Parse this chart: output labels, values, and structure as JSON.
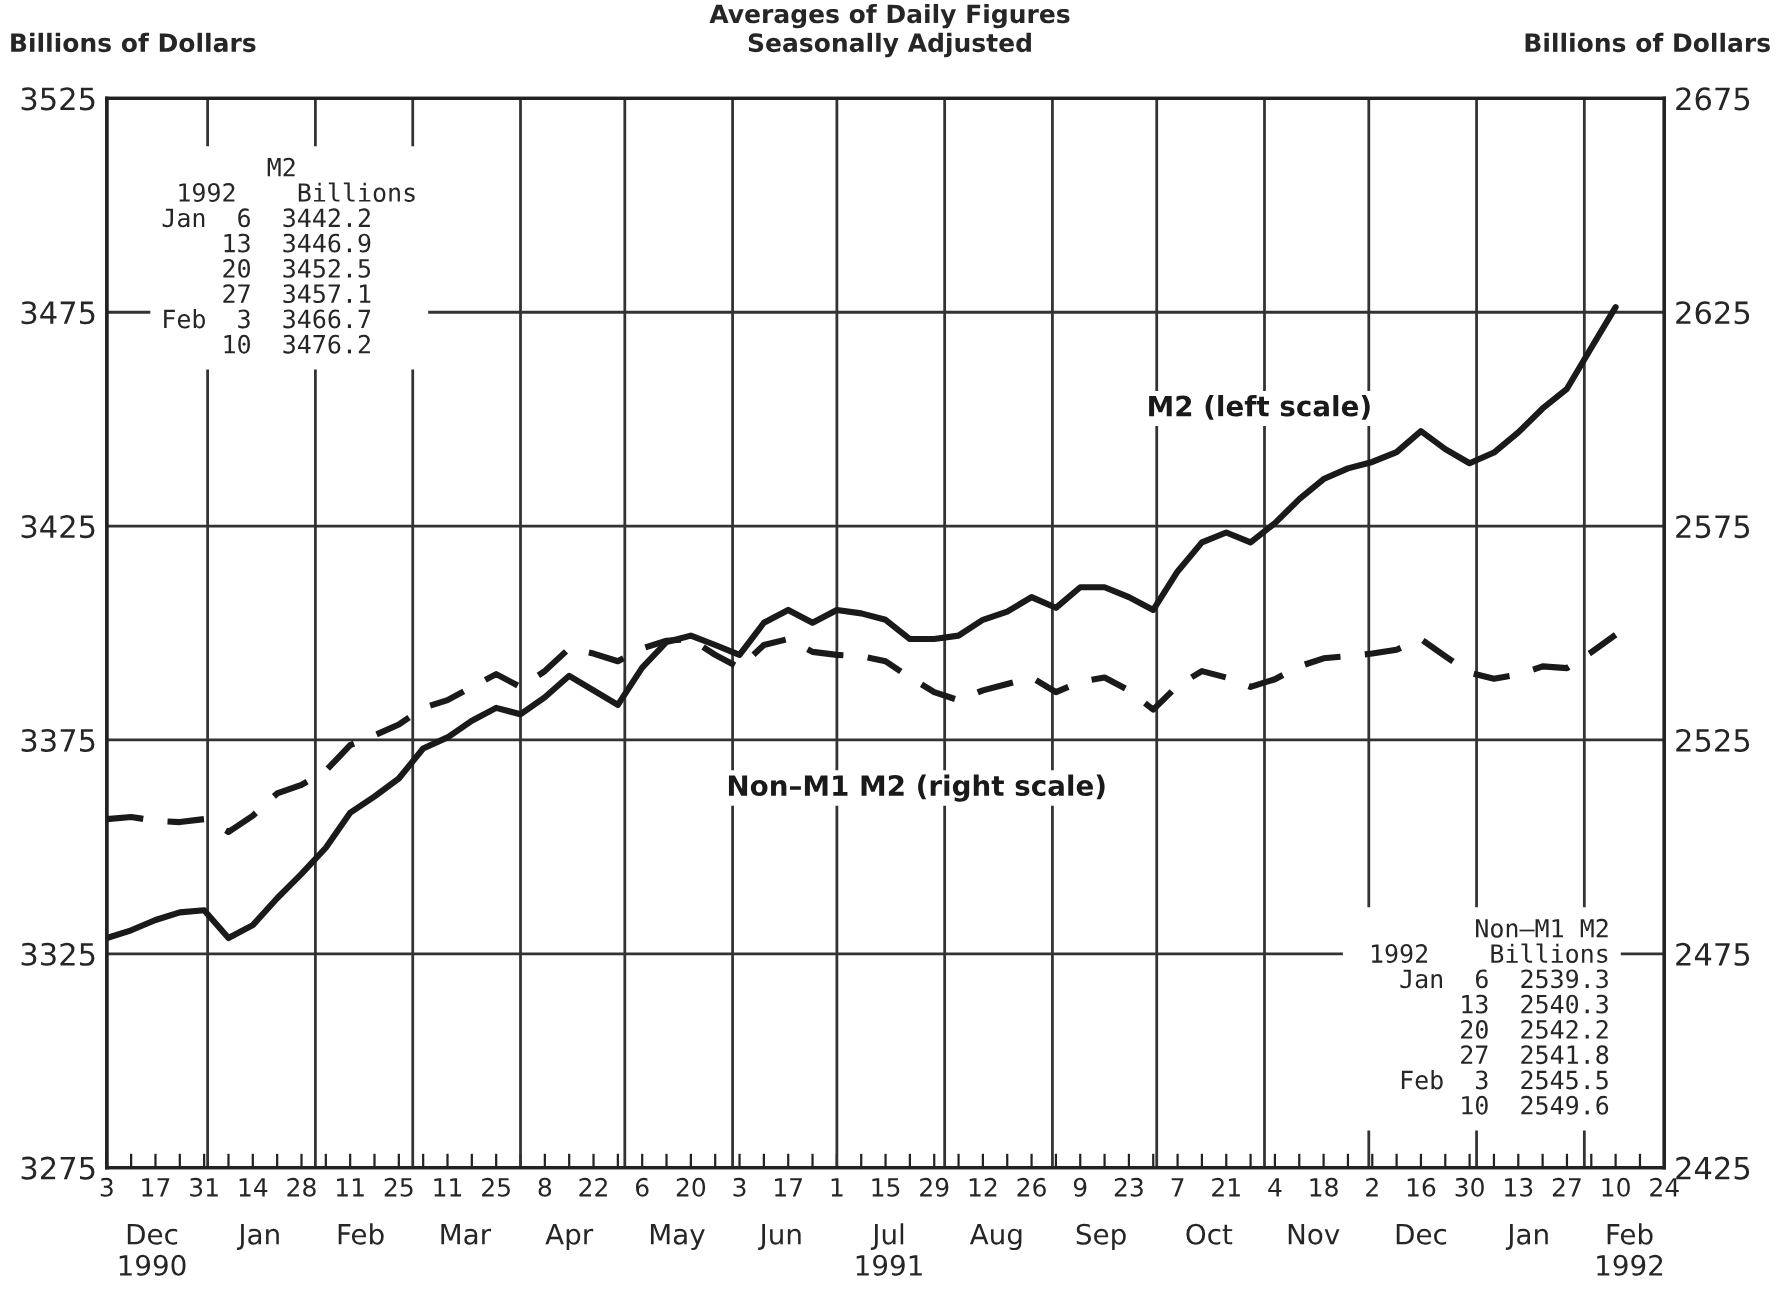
{
  "chart_data": {
    "type": "line",
    "title": "Averages of Daily Figures",
    "subtitle": "Seasonally Adjusted",
    "ylabel": "Billions of Dollars",
    "y2label": "Billions of Dollars",
    "x": [
      "1990-12-03",
      "1990-12-10",
      "1990-12-17",
      "1990-12-24",
      "1990-12-31",
      "1991-01-07",
      "1991-01-14",
      "1991-01-21",
      "1991-01-28",
      "1991-02-04",
      "1991-02-11",
      "1991-02-18",
      "1991-02-25",
      "1991-03-04",
      "1991-03-11",
      "1991-03-18",
      "1991-03-25",
      "1991-04-01",
      "1991-04-08",
      "1991-04-15",
      "1991-04-22",
      "1991-04-29",
      "1991-05-06",
      "1991-05-13",
      "1991-05-20",
      "1991-05-27",
      "1991-06-03",
      "1991-06-10",
      "1991-06-17",
      "1991-06-24",
      "1991-07-01",
      "1991-07-08",
      "1991-07-15",
      "1991-07-22",
      "1991-07-29",
      "1991-08-05",
      "1991-08-12",
      "1991-08-19",
      "1991-08-26",
      "1991-09-02",
      "1991-09-09",
      "1991-09-16",
      "1991-09-23",
      "1991-09-30",
      "1991-10-07",
      "1991-10-14",
      "1991-10-21",
      "1991-10-28",
      "1991-11-04",
      "1991-11-11",
      "1991-11-18",
      "1991-11-25",
      "1991-12-02",
      "1991-12-09",
      "1991-12-16",
      "1991-12-23",
      "1991-12-30",
      "1992-01-06",
      "1992-01-13",
      "1992-01-20",
      "1992-01-27",
      "1992-02-03",
      "1992-02-10"
    ],
    "series": [
      {
        "name": "M2 (left scale)",
        "color": "#1a1a1a",
        "line_style": "solid",
        "axis": "y",
        "values": [
          3328.7,
          3330.5,
          3332.9,
          3334.7,
          3335.2,
          3328.7,
          3331.7,
          3338,
          3343.7,
          3349.8,
          3358,
          3361.8,
          3366,
          3373,
          3375.6,
          3379.5,
          3382.5,
          3381,
          3385,
          3390,
          3386.6,
          3383.2,
          3391.9,
          3397.9,
          3399.4,
          3397.2,
          3394.9,
          3402.4,
          3405.4,
          3402.4,
          3405.4,
          3404.6,
          3403.1,
          3398.6,
          3398.6,
          3399.4,
          3403.1,
          3405,
          3408.4,
          3405.9,
          3410.7,
          3410.7,
          3408.4,
          3405.4,
          3414.4,
          3421.2,
          3423.5,
          3421.2,
          3425.7,
          3431.3,
          3436,
          3438.5,
          3440,
          3442.3,
          3447.2,
          3443,
          3439.7,
          3442.2,
          3446.9,
          3452.5,
          3457.1,
          3466.7,
          3476.2
        ]
      },
      {
        "name": "Non–M1 M2 (right scale)",
        "color": "#1a1a1a",
        "line_style": "dashed",
        "axis": "y2",
        "values": [
          2506.5,
          2507,
          2506.1,
          2505.8,
          2506.5,
          2503.5,
          2507.3,
          2512.5,
          2514.5,
          2517.8,
          2523.8,
          2526.1,
          2528.6,
          2532.5,
          2534.3,
          2537.4,
          2540.4,
          2537.4,
          2541.1,
          2546.4,
          2545.2,
          2543.4,
          2546.4,
          2548.2,
          2548.6,
          2544.9,
          2541.9,
          2547.2,
          2548.6,
          2545.6,
          2544.9,
          2544.6,
          2543.4,
          2539.6,
          2536.2,
          2534.3,
          2536.6,
          2538.1,
          2539.6,
          2536.2,
          2538.6,
          2539.6,
          2536.6,
          2532.1,
          2537.7,
          2541.1,
          2539.6,
          2537.4,
          2539.2,
          2542.2,
          2544.1,
          2544.6,
          2545.2,
          2546.1,
          2548.6,
          2544.6,
          2540.7,
          2539.3,
          2540.3,
          2542.2,
          2541.8,
          2545.5,
          2549.6
        ]
      }
    ],
    "xlim": [
      "1990-12-03",
      "1992-02-24"
    ],
    "xticks": [
      {
        "value": "1990-12-03",
        "label": "3"
      },
      {
        "value": "1990-12-10",
        "label": null
      },
      {
        "value": "1990-12-17",
        "label": "17"
      },
      {
        "value": "1990-12-24",
        "label": null
      },
      {
        "value": "1990-12-31",
        "label": "31"
      },
      {
        "value": "1991-01-07",
        "label": null
      },
      {
        "value": "1991-01-14",
        "label": "14"
      },
      {
        "value": "1991-01-21",
        "label": null
      },
      {
        "value": "1991-01-28",
        "label": "28"
      },
      {
        "value": "1991-02-04",
        "label": null
      },
      {
        "value": "1991-02-11",
        "label": "11"
      },
      {
        "value": "1991-02-18",
        "label": null
      },
      {
        "value": "1991-02-25",
        "label": "25"
      },
      {
        "value": "1991-03-04",
        "label": null
      },
      {
        "value": "1991-03-11",
        "label": "11"
      },
      {
        "value": "1991-03-18",
        "label": null
      },
      {
        "value": "1991-03-25",
        "label": "25"
      },
      {
        "value": "1991-04-01",
        "label": null
      },
      {
        "value": "1991-04-08",
        "label": "8"
      },
      {
        "value": "1991-04-15",
        "label": null
      },
      {
        "value": "1991-04-22",
        "label": "22"
      },
      {
        "value": "1991-04-29",
        "label": null
      },
      {
        "value": "1991-05-06",
        "label": "6"
      },
      {
        "value": "1991-05-13",
        "label": null
      },
      {
        "value": "1991-05-20",
        "label": "20"
      },
      {
        "value": "1991-05-27",
        "label": null
      },
      {
        "value": "1991-06-03",
        "label": "3"
      },
      {
        "value": "1991-06-10",
        "label": null
      },
      {
        "value": "1991-06-17",
        "label": "17"
      },
      {
        "value": "1991-06-24",
        "label": null
      },
      {
        "value": "1991-07-01",
        "label": "1"
      },
      {
        "value": "1991-07-08",
        "label": null
      },
      {
        "value": "1991-07-15",
        "label": "15"
      },
      {
        "value": "1991-07-22",
        "label": null
      },
      {
        "value": "1991-07-29",
        "label": "29"
      },
      {
        "value": "1991-08-05",
        "label": null
      },
      {
        "value": "1991-08-12",
        "label": "12"
      },
      {
        "value": "1991-08-19",
        "label": null
      },
      {
        "value": "1991-08-26",
        "label": "26"
      },
      {
        "value": "1991-09-02",
        "label": null
      },
      {
        "value": "1991-09-09",
        "label": "9"
      },
      {
        "value": "1991-09-16",
        "label": null
      },
      {
        "value": "1991-09-23",
        "label": "23"
      },
      {
        "value": "1991-09-30",
        "label": null
      },
      {
        "value": "1991-10-07",
        "label": "7"
      },
      {
        "value": "1991-10-14",
        "label": null
      },
      {
        "value": "1991-10-21",
        "label": "21"
      },
      {
        "value": "1991-10-28",
        "label": null
      },
      {
        "value": "1991-11-04",
        "label": "4"
      },
      {
        "value": "1991-11-11",
        "label": null
      },
      {
        "value": "1991-11-18",
        "label": "18"
      },
      {
        "value": "1991-11-25",
        "label": null
      },
      {
        "value": "1991-12-02",
        "label": "2"
      },
      {
        "value": "1991-12-09",
        "label": null
      },
      {
        "value": "1991-12-16",
        "label": "16"
      },
      {
        "value": "1991-12-23",
        "label": null
      },
      {
        "value": "1991-12-30",
        "label": "30"
      },
      {
        "value": "1992-01-06",
        "label": null
      },
      {
        "value": "1992-01-13",
        "label": "13"
      },
      {
        "value": "1992-01-20",
        "label": null
      },
      {
        "value": "1992-01-27",
        "label": "27"
      },
      {
        "value": "1992-02-03",
        "label": null
      },
      {
        "value": "1992-02-10",
        "label": "10"
      },
      {
        "value": "1992-02-17",
        "label": null
      },
      {
        "value": "1992-02-24",
        "label": "24"
      }
    ],
    "x2lim": [
      "1990-12-03",
      "1992-02-24"
    ],
    "x2ticks": [
      {
        "value": "1990-12-16",
        "label": "Dec\n1990"
      },
      {
        "value": "1991-01-16",
        "label": "Jan"
      },
      {
        "value": "1991-02-14",
        "label": "Feb"
      },
      {
        "value": "1991-03-16",
        "label": "Mar"
      },
      {
        "value": "1991-04-15",
        "label": "Apr"
      },
      {
        "value": "1991-05-16",
        "label": "May"
      },
      {
        "value": "1991-06-15",
        "label": "Jun"
      },
      {
        "value": "1991-07-16",
        "label": "Jul\n1991"
      },
      {
        "value": "1991-08-16",
        "label": "Aug"
      },
      {
        "value": "1991-09-15",
        "label": "Sep"
      },
      {
        "value": "1991-10-16",
        "label": "Oct"
      },
      {
        "value": "1991-11-15",
        "label": "Nov"
      },
      {
        "value": "1991-12-16",
        "label": "Dec"
      },
      {
        "value": "1992-01-16",
        "label": "Jan"
      },
      {
        "value": "1992-02-14",
        "label": "Feb\n1992"
      }
    ],
    "ylim": [
      3275,
      3525
    ],
    "yticks": [
      3275,
      3325,
      3375,
      3425,
      3475,
      3525
    ],
    "y2lim": [
      2425,
      2675
    ],
    "y2ticks": [
      2425,
      2475,
      2525,
      2575,
      2625,
      2675
    ],
    "grid": "y",
    "legend": false,
    "ref_lines": [
      {
        "axis": "x",
        "value": "1991-01-01"
      },
      {
        "axis": "x",
        "value": "1991-02-01"
      },
      {
        "axis": "x",
        "value": "1991-03-01"
      },
      {
        "axis": "x",
        "value": "1991-04-01"
      },
      {
        "axis": "x",
        "value": "1991-05-01"
      },
      {
        "axis": "x",
        "value": "1991-06-01"
      },
      {
        "axis": "x",
        "value": "1991-07-01"
      },
      {
        "axis": "x",
        "value": "1991-08-01"
      },
      {
        "axis": "x",
        "value": "1991-09-01"
      },
      {
        "axis": "x",
        "value": "1991-10-01"
      },
      {
        "axis": "x",
        "value": "1991-11-01"
      },
      {
        "axis": "x",
        "value": "1991-12-01"
      },
      {
        "axis": "x",
        "value": "1992-01-01"
      },
      {
        "axis": "x",
        "value": "1992-02-01"
      }
    ],
    "annotations": [
      "       M2\n 1992    Billions\nJan  6  3442.2\n    13  3446.9\n    20  3452.5\n    27  3457.1\nFeb  3  3466.7\n    10  3476.2",
      "   Non–M1 M2\n 1992    Billions\nJan  6  2539.3\n    13  2540.3\n    20  2542.2\n    27  2541.8\nFeb  3  2545.5\n    10  2549.6"
    ]
  }
}
